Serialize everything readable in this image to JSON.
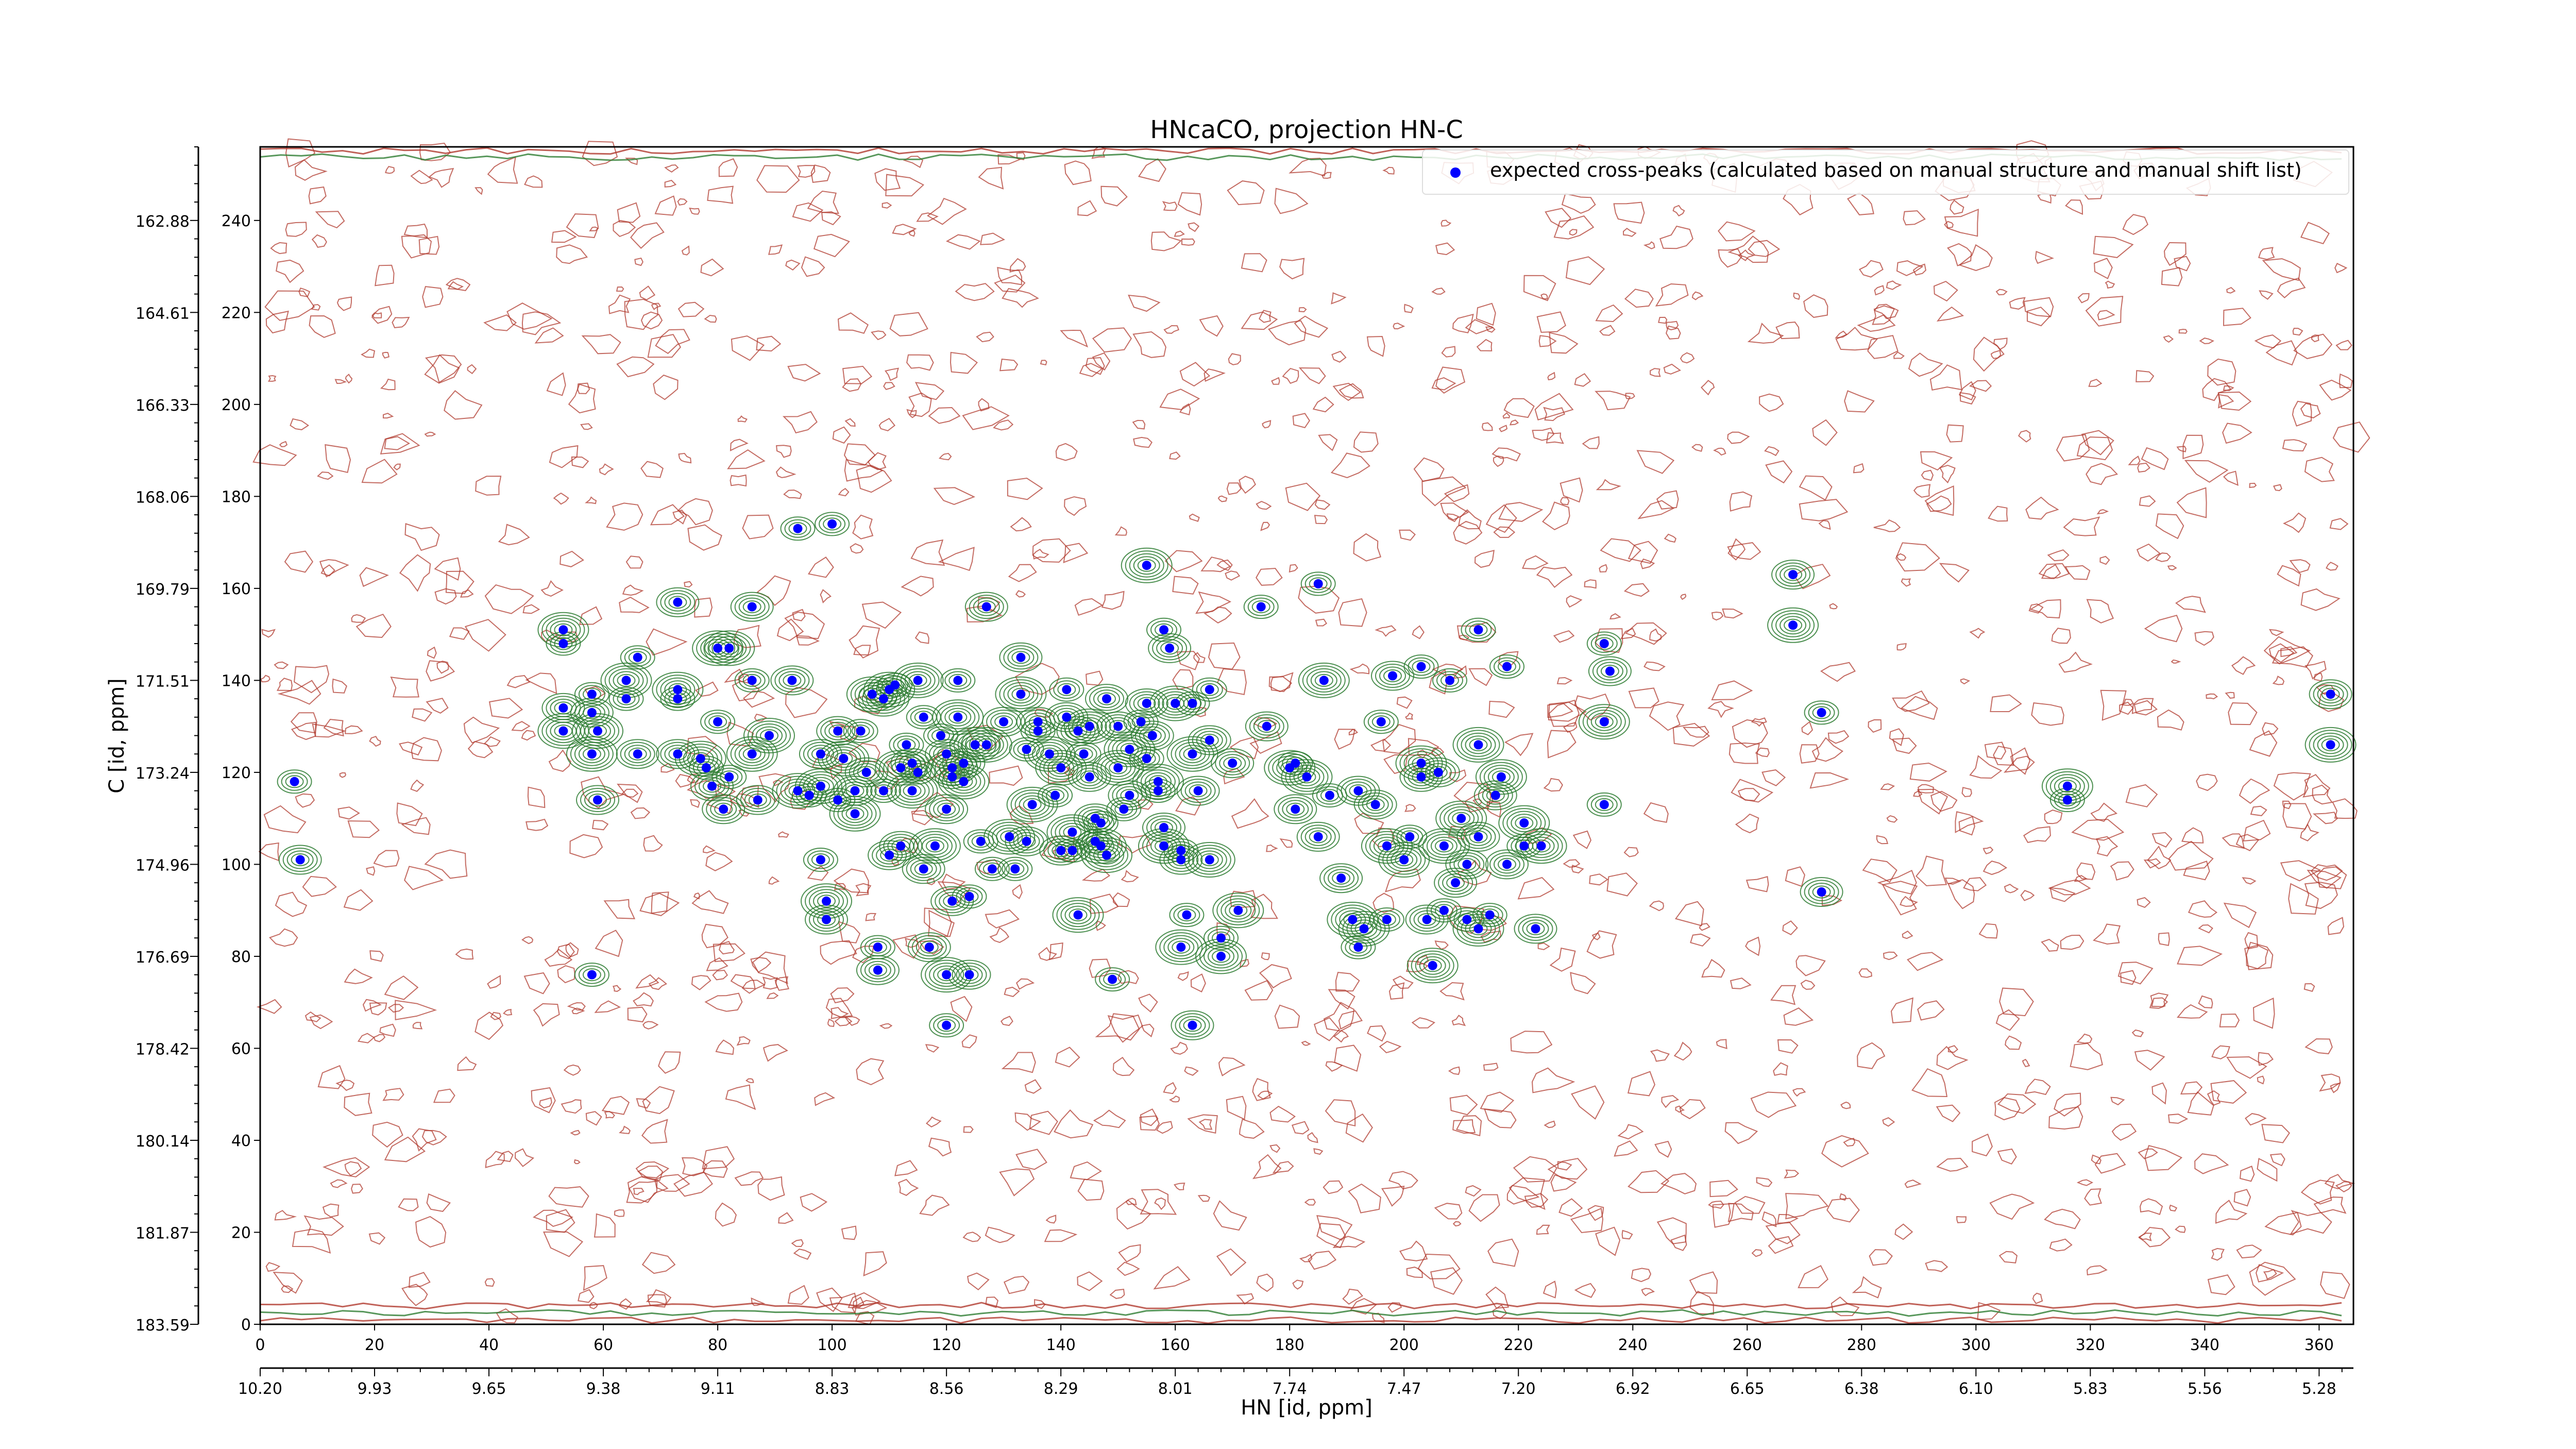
{
  "chart_data": {
    "type": "scatter",
    "title": "HNcaCO, projection HN-C",
    "xlabel": "HN [id, ppm]",
    "ylabel": "C [id, ppm]",
    "xlim": [
      0,
      366
    ],
    "ylim": [
      0,
      256
    ],
    "x_index_ticks": [
      "0",
      "20",
      "40",
      "60",
      "80",
      "100",
      "120",
      "140",
      "160",
      "180",
      "200",
      "220",
      "240",
      "260",
      "280",
      "300",
      "320",
      "340",
      "360"
    ],
    "x_ppm_ticks": [
      "10.20",
      "9.93",
      "9.65",
      "9.38",
      "9.11",
      "8.83",
      "8.56",
      "8.29",
      "8.01",
      "7.74",
      "7.47",
      "7.20",
      "6.92",
      "6.65",
      "6.38",
      "6.10",
      "5.83",
      "5.56",
      "5.28"
    ],
    "y_index_ticks": [
      "0",
      "20",
      "40",
      "60",
      "80",
      "100",
      "120",
      "140",
      "160",
      "180",
      "200",
      "220",
      "240"
    ],
    "y_ppm_ticks": [
      "183.59",
      "181.87",
      "180.14",
      "178.42",
      "176.69",
      "174.96",
      "173.24",
      "171.51",
      "169.79",
      "168.06",
      "166.33",
      "164.61",
      "162.88"
    ],
    "legend": {
      "label": "expected cross-peaks (calculated based on manual structure and manual shift list)",
      "position": "top-right"
    },
    "grid": false,
    "colors": {
      "expected": "#0000ff",
      "positive_contours": "#2e7d32",
      "negative_contours": "#b03a2e"
    },
    "series": [
      {
        "name": "expected cross-peaks (calculated based on manual structure and manual shift list)",
        "points": [
          [
            6,
            118
          ],
          [
            7,
            101
          ],
          [
            53,
            151
          ],
          [
            53,
            148
          ],
          [
            53,
            134
          ],
          [
            53,
            129
          ],
          [
            58,
            137
          ],
          [
            58,
            133
          ],
          [
            58,
            124
          ],
          [
            58,
            76
          ],
          [
            59,
            114
          ],
          [
            59,
            129
          ],
          [
            66,
            145
          ],
          [
            66,
            124
          ],
          [
            64,
            140
          ],
          [
            64,
            136
          ],
          [
            73,
            157
          ],
          [
            73,
            138
          ],
          [
            73,
            136
          ],
          [
            73,
            124
          ],
          [
            77,
            123
          ],
          [
            78,
            121
          ],
          [
            79,
            117
          ],
          [
            80,
            147
          ],
          [
            80,
            131
          ],
          [
            81,
            112
          ],
          [
            82,
            147
          ],
          [
            82,
            119
          ],
          [
            86,
            156
          ],
          [
            86,
            124
          ],
          [
            86,
            140
          ],
          [
            87,
            114
          ],
          [
            89,
            128
          ],
          [
            94,
            173
          ],
          [
            93,
            140
          ],
          [
            94,
            116
          ],
          [
            96,
            115
          ],
          [
            98,
            124
          ],
          [
            98,
            117
          ],
          [
            98,
            101
          ],
          [
            99,
            88
          ],
          [
            99,
            92
          ],
          [
            100,
            174
          ],
          [
            101,
            129
          ],
          [
            102,
            123
          ],
          [
            101,
            114
          ],
          [
            104,
            116
          ],
          [
            104,
            111
          ],
          [
            105,
            129
          ],
          [
            106,
            120
          ],
          [
            107,
            137
          ],
          [
            108,
            82
          ],
          [
            108,
            77
          ],
          [
            109,
            136
          ],
          [
            109,
            116
          ],
          [
            110,
            102
          ],
          [
            110,
            138
          ],
          [
            111,
            139
          ],
          [
            112,
            104
          ],
          [
            112,
            121
          ],
          [
            113,
            126
          ],
          [
            114,
            122
          ],
          [
            114,
            116
          ],
          [
            115,
            120
          ],
          [
            116,
            99
          ],
          [
            115,
            140
          ],
          [
            116,
            132
          ],
          [
            117,
            82
          ],
          [
            118,
            104
          ],
          [
            119,
            128
          ],
          [
            120,
            112
          ],
          [
            120,
            76
          ],
          [
            120,
            65
          ],
          [
            120,
            124
          ],
          [
            121,
            121
          ],
          [
            121,
            119
          ],
          [
            121,
            92
          ],
          [
            122,
            132
          ],
          [
            122,
            140
          ],
          [
            123,
            122
          ],
          [
            123,
            118
          ],
          [
            124,
            93
          ],
          [
            124,
            76
          ],
          [
            125,
            126
          ],
          [
            126,
            105
          ],
          [
            127,
            156
          ],
          [
            127,
            126
          ],
          [
            128,
            99
          ],
          [
            130,
            131
          ],
          [
            131,
            106
          ],
          [
            132,
            99
          ],
          [
            133,
            145
          ],
          [
            133,
            137
          ],
          [
            134,
            125
          ],
          [
            134,
            105
          ],
          [
            135,
            113
          ],
          [
            136,
            129
          ],
          [
            136,
            131
          ],
          [
            138,
            124
          ],
          [
            139,
            115
          ],
          [
            140,
            103
          ],
          [
            140,
            121
          ],
          [
            141,
            138
          ],
          [
            141,
            132
          ],
          [
            142,
            107
          ],
          [
            142,
            103
          ],
          [
            143,
            129
          ],
          [
            143,
            89
          ],
          [
            144,
            124
          ],
          [
            145,
            119
          ],
          [
            145,
            130
          ],
          [
            146,
            105
          ],
          [
            146,
            110
          ],
          [
            147,
            104
          ],
          [
            147,
            109
          ],
          [
            148,
            136
          ],
          [
            148,
            102
          ],
          [
            149,
            75
          ],
          [
            150,
            130
          ],
          [
            150,
            121
          ],
          [
            151,
            112
          ],
          [
            152,
            115
          ],
          [
            152,
            125
          ],
          [
            154,
            131
          ],
          [
            155,
            135
          ],
          [
            155,
            165
          ],
          [
            155,
            123
          ],
          [
            156,
            128
          ],
          [
            157,
            118
          ],
          [
            157,
            116
          ],
          [
            158,
            108
          ],
          [
            158,
            104
          ],
          [
            158,
            151
          ],
          [
            159,
            147
          ],
          [
            160,
            135
          ],
          [
            161,
            103
          ],
          [
            161,
            101
          ],
          [
            161,
            82
          ],
          [
            162,
            89
          ],
          [
            163,
            65
          ],
          [
            163,
            124
          ],
          [
            163,
            135
          ],
          [
            164,
            116
          ],
          [
            166,
            101
          ],
          [
            166,
            138
          ],
          [
            166,
            127
          ],
          [
            168,
            80
          ],
          [
            168,
            84
          ],
          [
            170,
            122
          ],
          [
            171,
            90
          ],
          [
            175,
            156
          ],
          [
            176,
            130
          ],
          [
            180,
            121
          ],
          [
            181,
            122
          ],
          [
            181,
            112
          ],
          [
            183,
            119
          ],
          [
            185,
            161
          ],
          [
            185,
            106
          ],
          [
            186,
            140
          ],
          [
            187,
            115
          ],
          [
            189,
            97
          ],
          [
            191,
            88
          ],
          [
            192,
            82
          ],
          [
            192,
            116
          ],
          [
            193,
            86
          ],
          [
            196,
            131
          ],
          [
            195,
            113
          ],
          [
            197,
            104
          ],
          [
            197,
            88
          ],
          [
            198,
            141
          ],
          [
            200,
            101
          ],
          [
            201,
            106
          ],
          [
            203,
            119
          ],
          [
            203,
            122
          ],
          [
            203,
            143
          ],
          [
            204,
            88
          ],
          [
            205,
            78
          ],
          [
            207,
            90
          ],
          [
            206,
            120
          ],
          [
            207,
            104
          ],
          [
            208,
            140
          ],
          [
            209,
            96
          ],
          [
            210,
            110
          ],
          [
            211,
            88
          ],
          [
            211,
            100
          ],
          [
            213,
            126
          ],
          [
            213,
            151
          ],
          [
            213,
            106
          ],
          [
            213,
            86
          ],
          [
            215,
            89
          ],
          [
            216,
            115
          ],
          [
            217,
            119
          ],
          [
            218,
            143
          ],
          [
            218,
            100
          ],
          [
            221,
            109
          ],
          [
            221,
            104
          ],
          [
            223,
            86
          ],
          [
            224,
            104
          ],
          [
            235,
            148
          ],
          [
            236,
            142
          ],
          [
            235,
            131
          ],
          [
            235,
            113
          ],
          [
            268,
            163
          ],
          [
            268,
            152
          ],
          [
            273,
            133
          ],
          [
            273,
            94
          ],
          [
            316,
            117
          ],
          [
            316,
            114
          ],
          [
            362,
            137
          ],
          [
            362,
            126
          ]
        ]
      }
    ]
  }
}
